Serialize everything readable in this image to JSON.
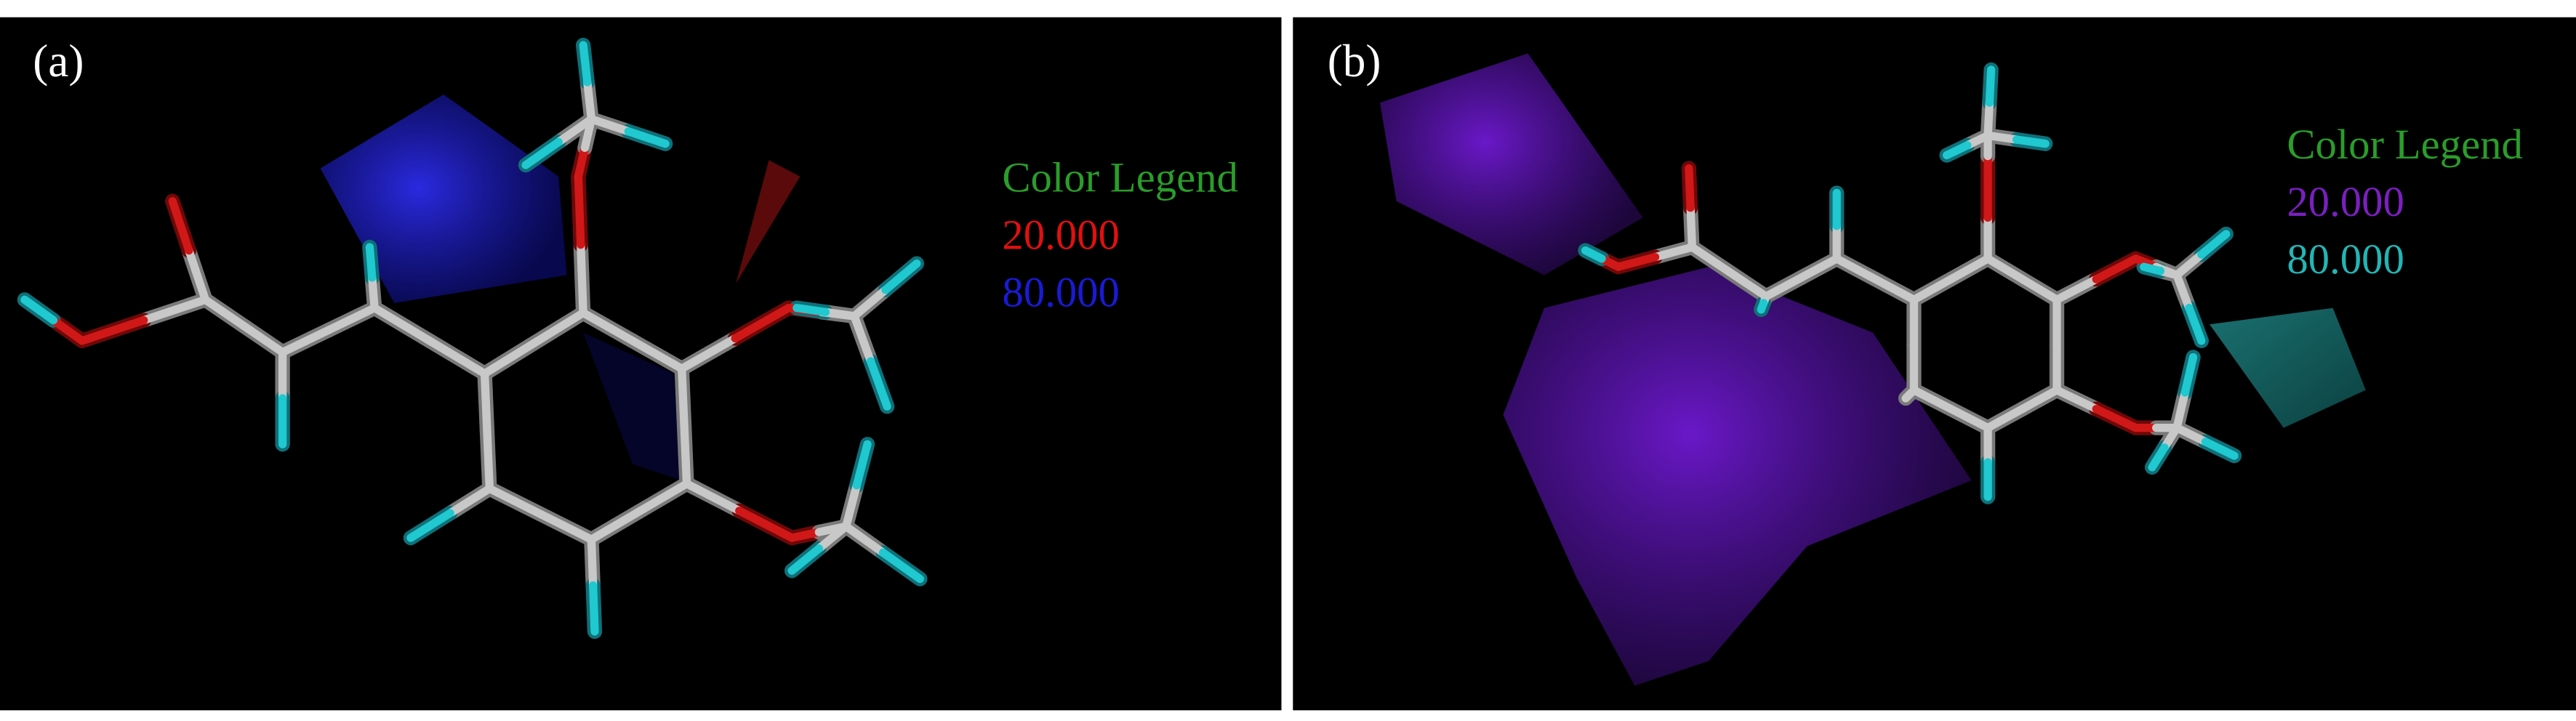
{
  "panels": [
    {
      "label": "(a)",
      "legend": {
        "title": "Color Legend",
        "entries": [
          "20.000",
          "80.000"
        ]
      }
    },
    {
      "label": "(b)",
      "legend": {
        "title": "Color Legend",
        "entries": [
          "20.000",
          "80.000"
        ]
      }
    }
  ]
}
